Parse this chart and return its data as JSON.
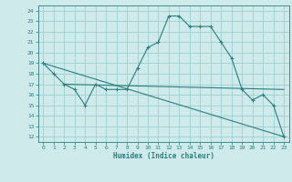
{
  "line1_x": [
    0,
    1,
    2,
    3,
    4,
    5,
    6,
    7,
    8,
    9,
    10,
    11,
    12,
    13,
    14,
    15,
    16,
    17,
    18,
    19,
    20,
    21,
    22,
    23
  ],
  "line1_y": [
    19,
    18,
    17,
    16.5,
    15,
    17,
    16.5,
    16.5,
    16.5,
    18.5,
    20.5,
    21,
    23.5,
    23.5,
    22.5,
    22.5,
    22.5,
    21,
    19.5,
    16.5,
    15.5,
    16,
    15,
    12
  ],
  "line2_x": [
    0,
    23
  ],
  "line2_y": [
    19,
    12
  ],
  "line3_x": [
    2,
    23
  ],
  "line3_y": [
    17,
    16.5
  ],
  "line_color": "#2a7f7f",
  "bg_color": "#ceeaea",
  "grid_color": "#9ecece",
  "xlabel": "Humidex (Indice chaleur)",
  "xlim": [
    -0.5,
    23.5
  ],
  "ylim": [
    11.5,
    24.5
  ],
  "yticks": [
    12,
    13,
    14,
    15,
    16,
    17,
    18,
    19,
    20,
    21,
    22,
    23,
    24
  ],
  "xticks": [
    0,
    1,
    2,
    3,
    4,
    5,
    6,
    7,
    8,
    9,
    10,
    11,
    12,
    13,
    14,
    15,
    16,
    17,
    18,
    19,
    20,
    21,
    22,
    23
  ],
  "marker": "+"
}
